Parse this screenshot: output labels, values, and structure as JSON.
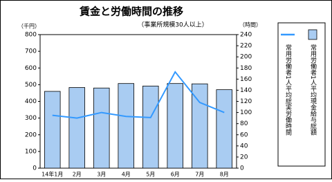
{
  "chart_data": {
    "type": "bar",
    "title": "賃金と労働時間の推移",
    "subtitle": "（事業所規模30人以上）",
    "y_label": "（千円）",
    "y2_label": "（時間）",
    "categories": [
      "14年1月",
      "2月",
      "3月",
      "4月",
      "5月",
      "6月",
      "7月",
      "8月"
    ],
    "series": [
      {
        "name": "常用労働者1人平均現金給与総額",
        "type": "bar",
        "color": "#a9ccf2",
        "values": [
          460,
          483,
          480,
          507,
          492,
          507,
          505,
          470
        ]
      },
      {
        "name": "常用労働者1人平均総実労働時間",
        "type": "line",
        "axis": "y2",
        "color": "#3399ff",
        "values": [
          95,
          90,
          100,
          93,
          91,
          173,
          118,
          100
        ]
      }
    ],
    "ylim": [
      0,
      800
    ],
    "yticks": [
      0,
      100,
      200,
      300,
      400,
      500,
      600,
      700,
      800
    ],
    "y2lim": [
      0,
      240
    ],
    "y2ticks": [
      0,
      20,
      40,
      60,
      80,
      100,
      120,
      140,
      160,
      180,
      200,
      220,
      240
    ],
    "grid": false
  }
}
